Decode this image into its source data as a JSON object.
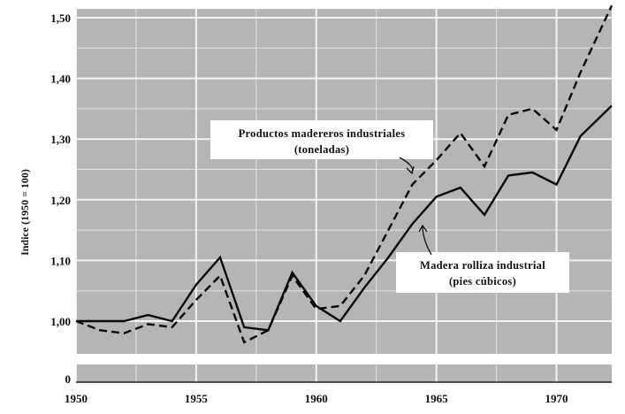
{
  "chart_data": {
    "type": "line",
    "title": "",
    "xlabel": "",
    "ylabel": "Indice (1950 = 100)",
    "grid": true,
    "xlim": [
      1950,
      1972.3
    ],
    "x_ticks": [
      1950,
      1955,
      1960,
      1965,
      1970
    ],
    "x_tick_labels": [
      "1950",
      "1955",
      "1960",
      "1965",
      "1970"
    ],
    "y_ticks": [
      1.0,
      1.1,
      1.2,
      1.3,
      1.4,
      1.5
    ],
    "y_tick_labels": [
      "1,00",
      "1,10",
      "1,20",
      "1,30",
      "1,40",
      "1,50"
    ],
    "y_zero_label": "0",
    "y_axis_break": true,
    "background_color": "#b5b5b5",
    "grid_color": "#f4f4f4",
    "line_color": "#0a0a0a",
    "x": [
      1950,
      1951,
      1952,
      1953,
      1954,
      1955,
      1956,
      1957,
      1958,
      1959,
      1960,
      1961,
      1962,
      1963,
      1964,
      1965,
      1966,
      1967,
      1968,
      1969,
      1970,
      1971,
      1972.3
    ],
    "series": [
      {
        "values": [
          1.0,
          0.985,
          0.98,
          0.995,
          0.99,
          1.035,
          1.075,
          0.965,
          0.985,
          1.075,
          1.02,
          1.025,
          1.075,
          1.15,
          1.225,
          1.265,
          1.31,
          1.255,
          1.34,
          1.35,
          1.315,
          1.41,
          1.52
        ],
        "style": "dashed"
      },
      {
        "values": [
          1.0,
          1.0,
          1.0,
          1.01,
          1.0,
          1.06,
          1.105,
          0.99,
          0.985,
          1.08,
          1.025,
          1.0,
          1.055,
          1.105,
          1.16,
          1.205,
          1.22,
          1.175,
          1.24,
          1.245,
          1.225,
          1.305,
          1.355
        ],
        "style": "solid"
      }
    ],
    "annotations": [
      {
        "line1": "Productos madereros industriales",
        "line2": "(toneladas)"
      },
      {
        "line1": "Madera rolliza industrial",
        "line2": "(pies cúbicos)"
      }
    ]
  }
}
